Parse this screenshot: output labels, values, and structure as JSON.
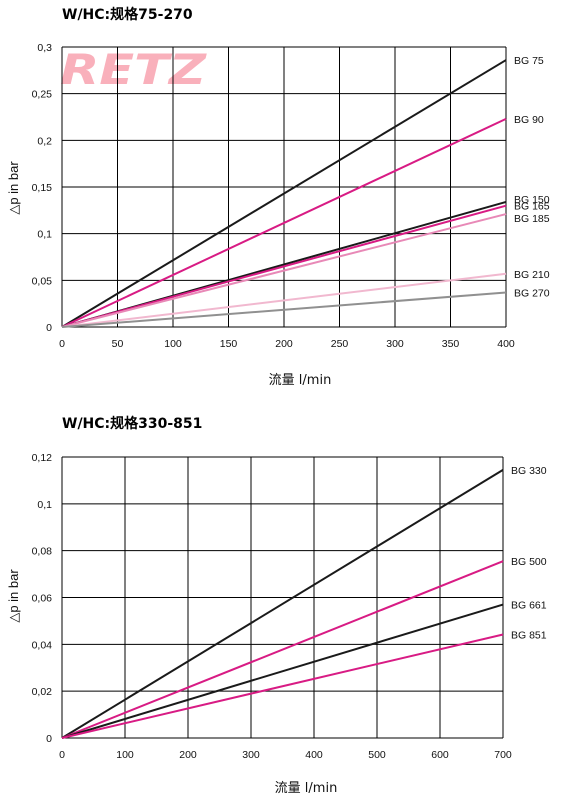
{
  "watermark": "RETZ",
  "colors": {
    "black": "#1a1a1a",
    "magenta": "#d81b84",
    "pink": "#e889b7",
    "lightpink": "#f1b8cf",
    "grey": "#909090",
    "grid": "#000000"
  },
  "chart_data": [
    {
      "type": "line",
      "title": "W/HC:规格75-270",
      "xlabel": "流量 l/min",
      "ylabel": "△p in bar",
      "xlim": [
        0,
        400
      ],
      "ylim": [
        0,
        0.3
      ],
      "x_ticks": [
        0,
        50,
        100,
        150,
        200,
        250,
        300,
        350,
        400
      ],
      "y_ticks": [
        0,
        0.05,
        0.1,
        0.15,
        0.2,
        0.25,
        0.3
      ],
      "x_tick_labels": [
        "0",
        "50",
        "100",
        "150",
        "200",
        "250",
        "300",
        "350",
        "400"
      ],
      "y_tick_labels": [
        "0",
        "0,05",
        "0,1",
        "0,15",
        "0,2",
        "0,25",
        "0,3"
      ],
      "grid": true,
      "series": [
        {
          "name": "BG 75",
          "x": [
            0,
            400
          ],
          "y": [
            0,
            0.286
          ],
          "color": "#1a1a1a"
        },
        {
          "name": "BG 90",
          "x": [
            0,
            400
          ],
          "y": [
            0,
            0.223
          ],
          "color": "#d81b84"
        },
        {
          "name": "BG 150",
          "x": [
            0,
            400
          ],
          "y": [
            0,
            0.134
          ],
          "color": "#1a1a1a"
        },
        {
          "name": "BG 165",
          "x": [
            0,
            400
          ],
          "y": [
            0,
            0.13
          ],
          "color": "#d81b84"
        },
        {
          "name": "BG 185",
          "x": [
            0,
            400
          ],
          "y": [
            0,
            0.121
          ],
          "color": "#e889b7"
        },
        {
          "name": "BG 210",
          "x": [
            0,
            400
          ],
          "y": [
            0,
            0.057
          ],
          "color": "#f1b8cf"
        },
        {
          "name": "BG 270",
          "x": [
            0,
            400
          ],
          "y": [
            0,
            0.037
          ],
          "color": "#909090"
        }
      ]
    },
    {
      "type": "line",
      "title": "W/HC:规格330-851",
      "xlabel": "流量 l/min",
      "ylabel": "△p in bar",
      "xlim": [
        0,
        700
      ],
      "ylim": [
        0,
        0.12
      ],
      "x_ticks": [
        0,
        100,
        200,
        300,
        400,
        500,
        600,
        700
      ],
      "y_ticks": [
        0,
        0.02,
        0.04,
        0.06,
        0.08,
        0.1,
        0.12
      ],
      "x_tick_labels": [
        "0",
        "100",
        "200",
        "300",
        "400",
        "500",
        "600",
        "700"
      ],
      "y_tick_labels": [
        "0",
        "0,02",
        "0,04",
        "0,06",
        "0,08",
        "0,1",
        "0,12"
      ],
      "grid": true,
      "series": [
        {
          "name": "BG 330",
          "x": [
            0,
            700
          ],
          "y": [
            0,
            0.1145
          ],
          "color": "#1a1a1a"
        },
        {
          "name": "BG 500",
          "x": [
            0,
            700
          ],
          "y": [
            0,
            0.0755
          ],
          "color": "#d81b84"
        },
        {
          "name": "BG 661",
          "x": [
            0,
            700
          ],
          "y": [
            0,
            0.057
          ],
          "color": "#1a1a1a"
        },
        {
          "name": "BG 851",
          "x": [
            0,
            700
          ],
          "y": [
            0,
            0.0442
          ],
          "color": "#d81b84"
        }
      ]
    }
  ]
}
